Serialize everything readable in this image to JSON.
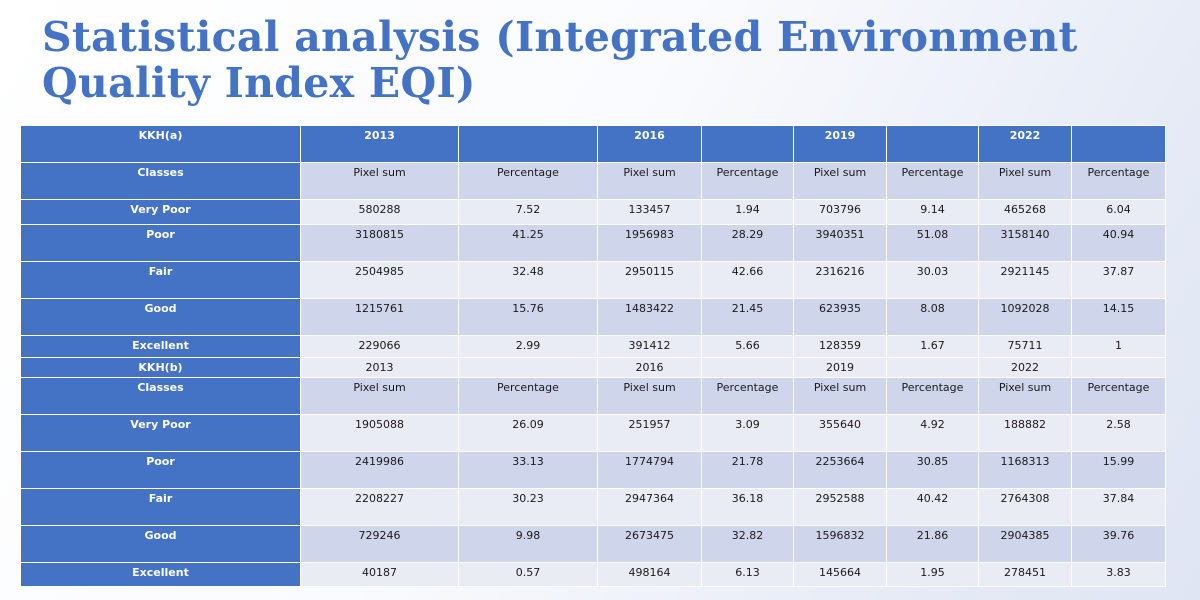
{
  "title": "Statistical analysis (Integrated Environment Quality Index EQI)",
  "colors": {
    "header_blue": "#4472c4",
    "band_dark": "#cfd5ea",
    "band_light": "#e9ebf5",
    "title_blue": "#4472c4"
  },
  "table_a": {
    "label": "KKH(a)",
    "years": [
      "2013",
      "2016",
      "2019",
      "2022"
    ],
    "classes_label": "Classes",
    "pixel_sum_label": "Pixel sum",
    "percentage_label": "Percentage",
    "rows": [
      {
        "class": "Very Poor",
        "values": [
          "580288",
          "7.52",
          "133457",
          "1.94",
          "703796",
          "9.14",
          "465268",
          "6.04"
        ]
      },
      {
        "class": "Poor",
        "values": [
          "3180815",
          "41.25",
          "1956983",
          "28.29",
          "3940351",
          "51.08",
          "3158140",
          "40.94"
        ]
      },
      {
        "class": "Fair",
        "values": [
          "2504985",
          "32.48",
          "2950115",
          "42.66",
          "2316216",
          "30.03",
          "2921145",
          "37.87"
        ]
      },
      {
        "class": "Good",
        "values": [
          "1215761",
          "15.76",
          "1483422",
          "21.45",
          "623935",
          "8.08",
          "1092028",
          "14.15"
        ]
      },
      {
        "class": "Excellent",
        "values": [
          "229066",
          "2.99",
          "391412",
          "5.66",
          "128359",
          "1.67",
          "75711",
          "1"
        ]
      }
    ]
  },
  "table_b": {
    "label": "KKH(b)",
    "years": [
      "2013",
      "2016",
      "2019",
      "2022"
    ],
    "classes_label": "Classes",
    "pixel_sum_label": "Pixel sum",
    "percentage_label": "Percentage",
    "rows": [
      {
        "class": "Very Poor",
        "values": [
          "1905088",
          "26.09",
          "251957",
          "3.09",
          "355640",
          "4.92",
          "188882",
          "2.58"
        ]
      },
      {
        "class": "Poor",
        "values": [
          "2419986",
          "33.13",
          "1774794",
          "21.78",
          "2253664",
          "30.85",
          "1168313",
          "15.99"
        ]
      },
      {
        "class": "Fair",
        "values": [
          "2208227",
          "30.23",
          "2947364",
          "36.18",
          "2952588",
          "40.42",
          "2764308",
          "37.84"
        ]
      },
      {
        "class": "Good",
        "values": [
          "729246",
          "9.98",
          "2673475",
          "32.82",
          "1596832",
          "21.86",
          "2904385",
          "39.76"
        ]
      },
      {
        "class": "Excellent",
        "values": [
          "40187",
          "0.57",
          "498164",
          "6.13",
          "145664",
          "1.95",
          "278451",
          "3.83"
        ]
      }
    ]
  }
}
